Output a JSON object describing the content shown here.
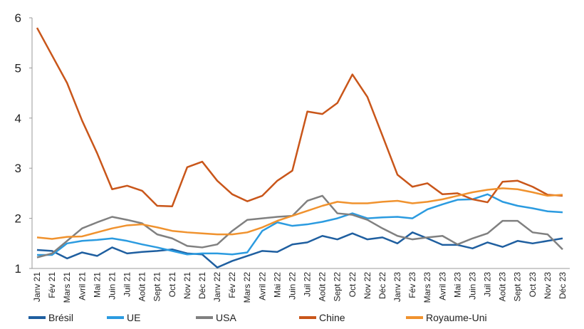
{
  "chart_data": {
    "type": "line",
    "categories": [
      "Janv 21",
      "Fév 21",
      "Mars 21",
      "Avril 21",
      "Mai 21",
      "Juin 21",
      "Juil 21",
      "Août 21",
      "Sept 21",
      "Oct 21",
      "Nov 21",
      "Déc 21",
      "Janv 22",
      "Fév 22",
      "Mars 22",
      "Avril 22",
      "Mai 22",
      "Juin 22",
      "Juil 22",
      "Août 22",
      "Sept 22",
      "Oct 22",
      "Nov 22",
      "Déc 22",
      "Janv 23",
      "Fév 23",
      "Mars 23",
      "Avril 23",
      "Mai 23",
      "Juin 23",
      "Juil 23",
      "Août 23",
      "Sept 23",
      "Oct 23",
      "Nov 23",
      "Déc 23"
    ],
    "series": [
      {
        "name": "Brésil",
        "color": "#1f5fa0",
        "values": [
          1.37,
          1.35,
          1.2,
          1.32,
          1.25,
          1.42,
          1.3,
          1.33,
          1.35,
          1.38,
          1.3,
          1.28,
          1.02,
          1.15,
          1.25,
          1.35,
          1.33,
          1.48,
          1.52,
          1.65,
          1.58,
          1.7,
          1.58,
          1.62,
          1.5,
          1.72,
          1.6,
          1.47,
          1.47,
          1.4,
          1.52,
          1.43,
          1.55,
          1.5,
          1.55,
          1.6
        ]
      },
      {
        "name": "UE",
        "color": "#2b9be0",
        "values": [
          1.27,
          1.27,
          1.5,
          1.55,
          1.57,
          1.6,
          1.55,
          1.48,
          1.42,
          1.35,
          1.28,
          1.3,
          1.3,
          1.28,
          1.32,
          1.75,
          1.92,
          1.85,
          1.88,
          1.93,
          2.0,
          2.1,
          2.0,
          2.02,
          2.03,
          2.0,
          2.18,
          2.28,
          2.37,
          2.38,
          2.48,
          2.33,
          2.25,
          2.2,
          2.14,
          2.12
        ]
      },
      {
        "name": "USA",
        "color": "#808080",
        "values": [
          1.22,
          1.3,
          1.55,
          1.8,
          1.92,
          2.03,
          1.97,
          1.9,
          1.68,
          1.6,
          1.45,
          1.42,
          1.48,
          1.75,
          1.97,
          2.0,
          2.03,
          2.05,
          2.35,
          2.45,
          2.1,
          2.07,
          1.97,
          1.8,
          1.65,
          1.58,
          1.62,
          1.65,
          1.48,
          1.6,
          1.7,
          1.95,
          1.95,
          1.72,
          1.68,
          1.38
        ]
      },
      {
        "name": "Chine",
        "color": "#c9561a",
        "values": [
          5.8,
          5.25,
          4.7,
          3.95,
          3.3,
          2.58,
          2.65,
          2.55,
          2.25,
          2.24,
          3.02,
          3.13,
          2.75,
          2.48,
          2.34,
          2.45,
          2.75,
          2.95,
          4.13,
          4.08,
          4.3,
          4.87,
          4.42,
          3.65,
          2.87,
          2.63,
          2.7,
          2.48,
          2.5,
          2.38,
          2.32,
          2.73,
          2.75,
          2.63,
          2.47,
          2.45
        ]
      },
      {
        "name": "Royaume-Uni",
        "color": "#f0922e",
        "values": [
          1.62,
          1.59,
          1.63,
          1.64,
          1.72,
          1.8,
          1.86,
          1.88,
          1.82,
          1.75,
          1.72,
          1.7,
          1.68,
          1.68,
          1.72,
          1.82,
          1.95,
          2.05,
          2.15,
          2.25,
          2.33,
          2.3,
          2.3,
          2.33,
          2.35,
          2.3,
          2.33,
          2.38,
          2.45,
          2.52,
          2.57,
          2.6,
          2.58,
          2.52,
          2.45,
          2.47
        ]
      }
    ],
    "ylim": [
      1,
      6
    ],
    "yticks": [
      1,
      2,
      3,
      4,
      5,
      6
    ]
  }
}
